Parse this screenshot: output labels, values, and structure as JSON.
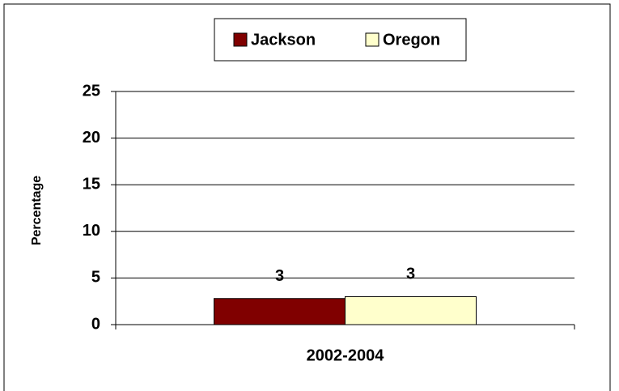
{
  "chart_data": {
    "type": "bar",
    "categories": [
      "2002-2004"
    ],
    "series": [
      {
        "name": "Jackson",
        "color": "#800000",
        "values": [
          2.8
        ],
        "value_labels": [
          "3"
        ]
      },
      {
        "name": "Oregon",
        "color": "#ffffcc",
        "values": [
          3.0
        ],
        "value_labels": [
          "3"
        ]
      }
    ],
    "y_label": "Percentage",
    "ylim": [
      0,
      25
    ],
    "yticks": [
      0,
      5,
      10,
      15,
      20,
      25
    ],
    "grid": true,
    "legend": "top"
  }
}
